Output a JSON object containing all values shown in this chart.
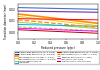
{
  "title": "",
  "xlabel": "Reduced pressure (p/pc)",
  "ylabel": "Transition diameter (mm)",
  "xlim": [
    0.0,
    1.0
  ],
  "ylim": [
    -0.005,
    0.025
  ],
  "background_color": "#ffffff",
  "lines": [
    {
      "label": "Bhattacharjee and Squire (D=3.1 mm)",
      "color": "#4472c4",
      "lw": 0.8,
      "y0": 0.0215,
      "y1": 0.02,
      "style": "-"
    },
    {
      "label": "Bhattacharjee and Squire (D=2.8 mm)",
      "color": "#7030a0",
      "lw": 0.8,
      "y0": 0.0185,
      "y1": 0.0175,
      "style": "-"
    },
    {
      "label": "Approximation (D=2.8 mm, L=1 mm)",
      "color": "#ff8c00",
      "lw": 1.2,
      "y0": 0.016,
      "y1": 0.008,
      "style": "-"
    },
    {
      "label": "Approximation (D=2.8 mm, L=0.5 mm)",
      "color": "#ffc000",
      "lw": 0.7,
      "y0": 0.014,
      "y1": 0.006,
      "style": "-"
    },
    {
      "label": "ALE 3D (MESH 2000) Fig",
      "color": "#92d050",
      "lw": 0.7,
      "y0": 0.009,
      "y1": 0.0035,
      "style": "-"
    },
    {
      "label": "Flow solver",
      "color": "#00b0f0",
      "lw": 0.7,
      "y0": 0.007,
      "y1": 0.0055,
      "style": "-"
    },
    {
      "label": "Bhattacharjee and Squire (D=1.7 mm)",
      "color": "#ff0000",
      "lw": 0.7,
      "y0": 0.012,
      "y1": 0.011,
      "style": "-"
    },
    {
      "label": "Approximation (D=1.7 mm, L=1 mm)",
      "color": "#ff8c00",
      "lw": 0.9,
      "y0": 0.011,
      "y1": 0.0045,
      "style": "--"
    },
    {
      "label": "Transition distance (D=1.7 mm)",
      "color": "#92d050",
      "lw": 0.7,
      "y0": 0.005,
      "y1": 0.0015,
      "style": "--"
    },
    {
      "label": "Lees Theory (2021) Fig",
      "color": "#ff00ff",
      "lw": 0.7,
      "y0": 0.0038,
      "y1": 0.0012,
      "style": "-"
    },
    {
      "label": "Turbulence and Transition (Fig)",
      "color": "#c00000",
      "lw": 0.7,
      "y0": 0.0025,
      "y1": -0.0005,
      "style": "-"
    }
  ],
  "legend_entries_col1": [
    "Bhattacharjee and Squire (D=3.1 mm)",
    "Bhattacharjee and Squire (D=2.8 mm)",
    "Approximation (D=2.8 mm, L=1 mm)",
    "Approximation (D=2.8 mm, L=0.5 mm)",
    "ALE 3D (MESH 2000) Fig",
    "Flow solver"
  ],
  "legend_entries_col2": [
    "Bhattacharjee and Squire (D=1.7 mm)",
    "Approximation (D=1.7 mm, L=1 mm)",
    "Transition distance (D=1.7 mm)",
    "Lees Theory (2021) Fig",
    "Turbulence and Transition (Fig)"
  ]
}
